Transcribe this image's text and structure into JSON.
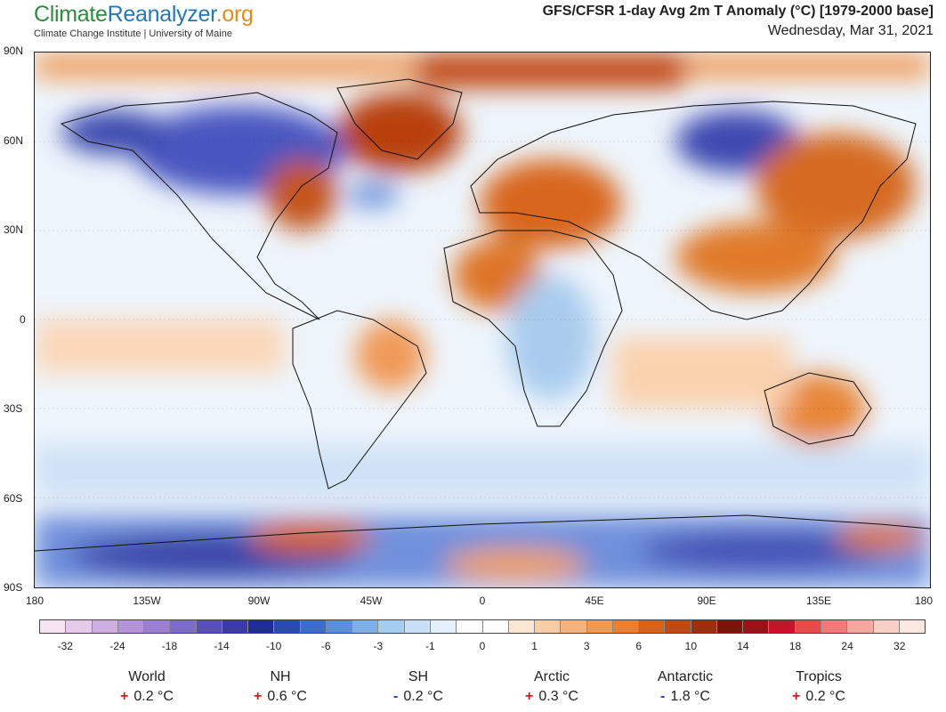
{
  "header": {
    "logo_part1": "Climate",
    "logo_part2": "Reanalyzer",
    "logo_part3": ".org",
    "subtitle": "Climate Change Institute | University of Maine",
    "title": "GFS/CFSR 1-day Avg 2m T Anomaly (°C) [1979-2000 base]",
    "date": "Wednesday, Mar 31, 2021"
  },
  "map": {
    "lat_labels": [
      "90N",
      "60N",
      "30N",
      "0",
      "30S",
      "60S",
      "90S"
    ],
    "lon_labels": [
      "180",
      "135W",
      "90W",
      "45W",
      "0",
      "45E",
      "90E",
      "135E",
      "180"
    ]
  },
  "colorbar": {
    "labels": [
      "-32",
      "-24",
      "-18",
      "-14",
      "-10",
      "-6",
      "-3",
      "-1",
      "0",
      "1",
      "3",
      "6",
      "10",
      "14",
      "18",
      "24",
      "32"
    ],
    "colors": [
      "#f7e3f2",
      "#e6c9ec",
      "#cfaee3",
      "#b593db",
      "#9a7fd3",
      "#7f6bc9",
      "#5a4fb8",
      "#3a3aa8",
      "#1f2d96",
      "#2a4bb0",
      "#3d6dcc",
      "#5b8edc",
      "#7fb0ea",
      "#a4cdf2",
      "#c8e1f7",
      "#e4f0fb",
      "#ffffff",
      "#ffffff",
      "#fde6d2",
      "#fbcda6",
      "#f8b47c",
      "#f39a52",
      "#ec7f2d",
      "#d9621b",
      "#bf4a12",
      "#9e2f0c",
      "#7c1408",
      "#9c1018",
      "#c4152a",
      "#e84a4a",
      "#f47a7a",
      "#f8a8a0",
      "#fbd0c6",
      "#fde8e2"
    ]
  },
  "stats": [
    {
      "name": "World",
      "sign": "+",
      "value": "0.2 °C"
    },
    {
      "name": "NH",
      "sign": "+",
      "value": "0.6 °C"
    },
    {
      "name": "SH",
      "sign": "-",
      "value": "0.2 °C"
    },
    {
      "name": "Arctic",
      "sign": "+",
      "value": "0.3 °C"
    },
    {
      "name": "Antarctic",
      "sign": "-",
      "value": "1.8 °C"
    },
    {
      "name": "Tropics",
      "sign": "+",
      "value": "0.2 °C"
    }
  ]
}
